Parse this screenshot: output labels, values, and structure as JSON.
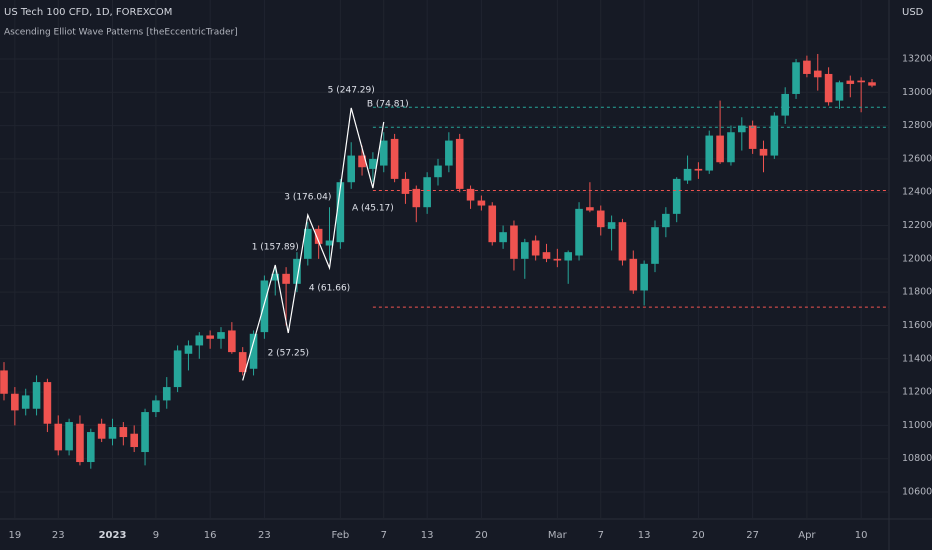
{
  "header": {
    "symbol": "US Tech 100 CFD, 1D, FOREXCOM",
    "indicator": "Ascending Elliot Wave Patterns [theEccentricTrader]",
    "currency": "USD"
  },
  "chart_data": {
    "type": "candlestick",
    "up_color": "#26a69a",
    "down_color": "#ef5350",
    "ylim": [
      10462,
      13554
    ],
    "yticks": [
      {
        "value": 10600,
        "label": "10600.0"
      },
      {
        "value": 10800,
        "label": "10800.0"
      },
      {
        "value": 11000,
        "label": "11000.0"
      },
      {
        "value": 11200,
        "label": "11200.0"
      },
      {
        "value": 11400,
        "label": "11400.0"
      },
      {
        "value": 11600,
        "label": "11600.0"
      },
      {
        "value": 11800,
        "label": "11800.0"
      },
      {
        "value": 12000,
        "label": "12000.0"
      },
      {
        "value": 12200,
        "label": "12200.0"
      },
      {
        "value": 12400,
        "label": "12400.0"
      },
      {
        "value": 12600,
        "label": "12600.0"
      },
      {
        "value": 12800,
        "label": "12800.0"
      },
      {
        "value": 13000,
        "label": "13000.0"
      },
      {
        "value": 13200,
        "label": "13200.0"
      }
    ],
    "grid": true,
    "categories": [
      null,
      "19",
      null,
      null,
      null,
      "23",
      null,
      null,
      null,
      null,
      "2023",
      null,
      null,
      null,
      "9",
      null,
      null,
      null,
      null,
      "16",
      null,
      null,
      null,
      null,
      "23",
      null,
      null,
      null,
      null,
      null,
      null,
      "Feb",
      null,
      null,
      null,
      "7",
      null,
      null,
      null,
      "13",
      null,
      null,
      null,
      null,
      "20",
      null,
      null,
      null,
      null,
      null,
      null,
      "Mar",
      null,
      null,
      null,
      "7",
      null,
      null,
      null,
      "13",
      null,
      null,
      null,
      null,
      "20",
      null,
      null,
      null,
      null,
      "27",
      null,
      null,
      null,
      null,
      "Apr",
      null,
      null,
      null,
      null,
      "10",
      null
    ],
    "open": [
      11330,
      11190,
      11100,
      11100,
      11260,
      11010,
      10850,
      11010,
      10780,
      11010,
      10920,
      10990,
      10950,
      10840,
      11080,
      11150,
      11230,
      11430,
      11480,
      11540,
      11520,
      11570,
      11440,
      11340,
      11560,
      11870,
      11910,
      11850,
      12000,
      12180,
      12080,
      12100,
      12460,
      12620,
      12540,
      12560,
      12720,
      12480,
      12420,
      12310,
      12490,
      12560,
      12720,
      12420,
      12350,
      12320,
      12100,
      12200,
      12000,
      12110,
      12040,
      12000,
      11990,
      12020,
      12310,
      12290,
      12180,
      12220,
      12000,
      11810,
      11970,
      12190,
      12270,
      12470,
      12540,
      12530,
      12740,
      12580,
      12760,
      12800,
      12660,
      12620,
      12860,
      12990,
      13190,
      13130,
      13110,
      12950,
      13070,
      13070,
      13060
    ],
    "high": [
      11380,
      11230,
      11220,
      11300,
      11280,
      11060,
      11040,
      11060,
      10980,
      11040,
      11040,
      11020,
      11000,
      11100,
      11180,
      11290,
      11480,
      11510,
      11560,
      11570,
      11590,
      11620,
      11470,
      11570,
      11900,
      11950,
      11950,
      12040,
      12220,
      12200,
      12310,
      12480,
      12700,
      12680,
      12640,
      12760,
      12750,
      12520,
      12440,
      12520,
      12600,
      12760,
      12750,
      12440,
      12380,
      12340,
      12200,
      12230,
      12120,
      12140,
      12090,
      12060,
      12050,
      12340,
      12460,
      12320,
      12260,
      12240,
      12050,
      11990,
      12230,
      12310,
      12490,
      12620,
      12580,
      12770,
      12950,
      12800,
      12850,
      12830,
      12710,
      12880,
      13030,
      13200,
      13220,
      13230,
      13150,
      13070,
      13100,
      13090,
      13080
    ],
    "low": [
      11150,
      11000,
      11060,
      11060,
      10960,
      10820,
      10820,
      10760,
      10740,
      10900,
      10880,
      10880,
      10840,
      10760,
      11050,
      11100,
      11200,
      11330,
      11400,
      11460,
      11460,
      11430,
      11300,
      11300,
      11520,
      11780,
      11600,
      11800,
      11960,
      12000,
      11990,
      12060,
      12420,
      12500,
      12460,
      12520,
      12460,
      12330,
      12220,
      12270,
      12440,
      12520,
      12400,
      12300,
      12290,
      12080,
      12060,
      11930,
      11880,
      11990,
      11980,
      11950,
      11850,
      11990,
      12280,
      12140,
      12050,
      11960,
      11790,
      11720,
      11920,
      12130,
      12220,
      12450,
      12480,
      12510,
      12570,
      12560,
      12650,
      12630,
      12520,
      12600,
      12810,
      12960,
      13090,
      13010,
      12920,
      12900,
      12970,
      12880,
      13030
    ],
    "close": [
      11190,
      11090,
      11180,
      11260,
      11010,
      10850,
      11020,
      10780,
      10960,
      10920,
      10990,
      10930,
      10870,
      11080,
      11150,
      11230,
      11450,
      11480,
      11540,
      11520,
      11560,
      11440,
      11320,
      11550,
      11870,
      11910,
      11850,
      12000,
      12180,
      12090,
      12110,
      12460,
      12620,
      12550,
      12600,
      12710,
      12480,
      12390,
      12310,
      12490,
      12560,
      12710,
      12420,
      12350,
      12320,
      12100,
      12160,
      12000,
      12100,
      12020,
      12000,
      11990,
      12040,
      12300,
      12290,
      12190,
      12220,
      11990,
      11810,
      11970,
      12190,
      12270,
      12480,
      12540,
      12530,
      12740,
      12580,
      12760,
      12800,
      12660,
      12620,
      12860,
      12990,
      13180,
      13110,
      13090,
      12940,
      13060,
      13050,
      13060,
      13040
    ],
    "levels": [
      {
        "value": 12910,
        "color": "#26a69a",
        "start": 34
      },
      {
        "value": 12790,
        "color": "#26a69a",
        "start": 34
      },
      {
        "value": 12410,
        "color": "#ef5350",
        "start": 34
      },
      {
        "value": 11710,
        "color": "#ef5350",
        "start": 34
      }
    ],
    "wave": {
      "color": "#ffffff",
      "points": [
        {
          "index": 22,
          "value": 11270
        },
        {
          "index": 25,
          "value": 11963,
          "label": "1 (157.89)"
        },
        {
          "index": 26.2,
          "value": 11555,
          "label": "2 (57.25)"
        },
        {
          "index": 28,
          "value": 12263,
          "label": "3 (176.04)"
        },
        {
          "index": 30,
          "value": 11945,
          "label": "4 (61.66)"
        },
        {
          "index": 32,
          "value": 12906,
          "label": "5 (247.29)"
        },
        {
          "index": 34,
          "value": 12425,
          "label": "A (45.17)"
        },
        {
          "index": 35,
          "value": 12822,
          "label": "B (74.81)"
        }
      ]
    }
  }
}
